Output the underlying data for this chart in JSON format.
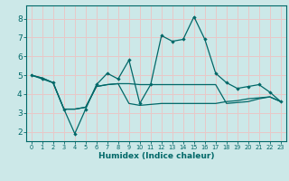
{
  "xlabel": "Humidex (Indice chaleur)",
  "xlim": [
    -0.5,
    23.5
  ],
  "ylim": [
    1.5,
    8.7
  ],
  "yticks": [
    2,
    3,
    4,
    5,
    6,
    7,
    8
  ],
  "xticks": [
    0,
    1,
    2,
    3,
    4,
    5,
    6,
    7,
    8,
    9,
    10,
    11,
    12,
    13,
    14,
    15,
    16,
    17,
    18,
    19,
    20,
    21,
    22,
    23
  ],
  "background_color": "#cce8e8",
  "grid_color": "#e8c8c8",
  "line_color": "#006868",
  "series": [
    {
      "x": [
        0,
        1,
        2,
        3,
        4,
        5,
        6,
        7,
        8,
        9,
        10,
        11,
        12,
        13,
        14,
        15,
        16,
        17,
        18,
        19,
        20,
        21,
        22,
        23
      ],
      "y": [
        5.0,
        4.8,
        4.6,
        3.2,
        1.9,
        3.2,
        4.5,
        5.1,
        4.8,
        5.8,
        3.5,
        4.5,
        7.1,
        6.8,
        6.9,
        8.1,
        6.9,
        5.1,
        4.6,
        4.3,
        4.4,
        4.5,
        4.1,
        3.6
      ],
      "marker": true
    },
    {
      "x": [
        0,
        1,
        2,
        3,
        4,
        5,
        6,
        7,
        8,
        9,
        10,
        11,
        12,
        13,
        14,
        15,
        16,
        17,
        18,
        19,
        20,
        21,
        22,
        23
      ],
      "y": [
        5.0,
        4.85,
        4.6,
        3.2,
        3.2,
        3.3,
        4.4,
        4.5,
        4.55,
        4.55,
        4.5,
        4.5,
        4.5,
        4.5,
        4.5,
        4.5,
        4.5,
        4.5,
        3.5,
        3.55,
        3.6,
        3.75,
        3.85,
        3.6
      ],
      "marker": false
    },
    {
      "x": [
        0,
        1,
        2,
        3,
        4,
        5,
        6,
        7,
        8,
        9,
        10,
        11,
        12,
        13,
        14,
        15,
        16,
        17,
        18,
        19,
        20,
        21,
        22,
        23
      ],
      "y": [
        5.0,
        4.85,
        4.6,
        3.2,
        3.2,
        3.3,
        4.4,
        4.5,
        4.55,
        3.5,
        3.4,
        3.45,
        3.5,
        3.5,
        3.5,
        3.5,
        3.5,
        3.5,
        3.6,
        3.65,
        3.75,
        3.8,
        3.85,
        3.6
      ],
      "marker": false
    }
  ]
}
